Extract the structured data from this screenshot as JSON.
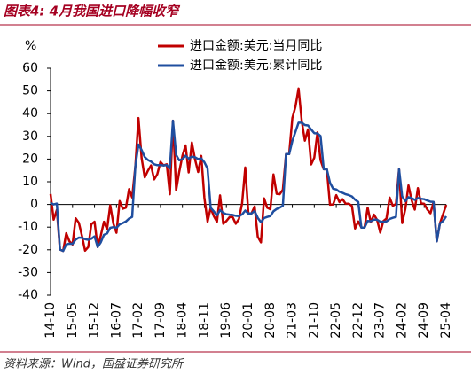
{
  "chart_data": {
    "type": "line",
    "title": "图表4:  4月我国进口降幅收窄",
    "source": "资料来源：Wind，国盛证券研究所",
    "ylabel": "%",
    "categories": [
      "14-10",
      null,
      null,
      null,
      null,
      null,
      null,
      "15-05",
      null,
      null,
      null,
      null,
      null,
      null,
      "15-12",
      null,
      null,
      null,
      null,
      null,
      null,
      "16-07",
      null,
      null,
      null,
      null,
      null,
      null,
      "17-02",
      null,
      null,
      null,
      null,
      null,
      null,
      "17-09",
      null,
      null,
      null,
      null,
      null,
      null,
      "18-04",
      null,
      null,
      null,
      null,
      null,
      null,
      "18-11",
      null,
      null,
      null,
      null,
      null,
      null,
      "19-06",
      null,
      null,
      null,
      null,
      null,
      null,
      "20-01",
      null,
      null,
      null,
      null,
      null,
      null,
      "20-08",
      null,
      null,
      null,
      null,
      null,
      null,
      "21-03",
      null,
      null,
      null,
      null,
      null,
      null,
      "21-10",
      null,
      null,
      null,
      null,
      null,
      null,
      "22-05",
      null,
      null,
      null,
      null,
      null,
      null,
      "22-12",
      null,
      null,
      null,
      null,
      null,
      null,
      "23-07",
      null,
      null,
      null,
      null,
      null,
      null,
      "24-02",
      null,
      null,
      null,
      null,
      null,
      null,
      "24-09",
      null,
      null,
      null,
      null,
      null,
      null,
      "25-04"
    ],
    "series": [
      {
        "name": "进口金额:美元:当月同比",
        "color": "#c00000",
        "values": [
          4.6,
          -6.7,
          -2.4,
          -19.9,
          -20.5,
          -12.7,
          -16.2,
          -17.6,
          -6.1,
          -8.1,
          -13.8,
          -20.4,
          -18.8,
          -8.7,
          -7.6,
          -18.8,
          -13.8,
          -7.6,
          -10.9,
          -0.4,
          -8.4,
          -12.5,
          1.5,
          -1.9,
          -1.4,
          6.7,
          3.1,
          16.7,
          38.1,
          20.3,
          11.9,
          14.8,
          17.2,
          11.0,
          13.3,
          18.7,
          17.2,
          17.7,
          4.5,
          36.9,
          6.3,
          14.4,
          21.5,
          26.0,
          14.1,
          27.3,
          20.0,
          14.3,
          21.4,
          3.0,
          -7.6,
          -1.5,
          -5.2,
          -7.6,
          4.0,
          -8.5,
          -7.3,
          -5.6,
          -5.6,
          -8.5,
          -6.4,
          0.3,
          16.3,
          -4.0,
          -4.0,
          -0.9,
          -14.2,
          -16.7,
          2.7,
          -1.4,
          -2.1,
          13.2,
          4.7,
          4.5,
          6.5,
          22.2,
          22.2,
          38.1,
          43.1,
          51.1,
          36.7,
          28.1,
          33.1,
          17.6,
          20.6,
          31.7,
          19.5,
          15.5,
          15.5,
          -0.1,
          0.0,
          4.1,
          1.0,
          2.3,
          0.3,
          0.3,
          -0.7,
          -10.6,
          -7.5,
          -10.2,
          -10.2,
          -1.4,
          -7.9,
          -4.5,
          -6.8,
          -12.4,
          -7.3,
          -6.2,
          3.0,
          -0.6,
          0.2,
          15.5,
          -8.2,
          -1.9,
          8.4,
          1.8,
          -2.3,
          7.2,
          0.5,
          0.3,
          -2.3,
          -3.9,
          1.0,
          -16.3,
          -8.4,
          -4.3,
          -0.2
        ]
      },
      {
        "name": "进口金额:美元:累计同比",
        "color": "#1f4e9f",
        "values": [
          0.7,
          0.0,
          0.4,
          -19.9,
          -20.5,
          -17.6,
          -17.3,
          -17.4,
          -15.5,
          -14.6,
          -14.7,
          -15.3,
          -15.6,
          -15.1,
          -14.1,
          -18.8,
          -16.7,
          -13.4,
          -12.8,
          -10.3,
          -10.0,
          -10.3,
          -8.8,
          -8.2,
          -7.5,
          -6.2,
          -5.5,
          16.7,
          26.4,
          24.0,
          20.9,
          19.6,
          18.9,
          17.7,
          17.3,
          17.3,
          17.2,
          17.3,
          15.9,
          36.9,
          21.8,
          19.4,
          20.0,
          21.5,
          20.2,
          21.1,
          20.8,
          20.0,
          20.3,
          18.6,
          15.8,
          -1.5,
          -3.1,
          -4.8,
          -2.5,
          -3.7,
          -4.3,
          -4.5,
          -4.6,
          -5.0,
          -5.1,
          -4.4,
          -2.7,
          -4.0,
          -4.0,
          -2.9,
          -5.9,
          -7.8,
          -6.0,
          -5.5,
          -5.1,
          -3.0,
          -2.0,
          -1.4,
          -0.6,
          22.2,
          22.2,
          28.0,
          32.0,
          36.0,
          36.0,
          35.0,
          34.8,
          33.0,
          31.4,
          31.3,
          30.1,
          15.5,
          15.5,
          9.6,
          6.9,
          6.6,
          5.6,
          5.1,
          4.5,
          4.1,
          3.5,
          2.1,
          1.1,
          -10.2,
          -10.2,
          -7.3,
          -7.4,
          -6.7,
          -6.7,
          -7.6,
          -7.6,
          -7.5,
          -6.4,
          -5.9,
          -5.5,
          15.5,
          3.5,
          1.5,
          3.2,
          2.8,
          2.0,
          2.8,
          2.5,
          2.3,
          1.7,
          1.2,
          1.1,
          -16.3,
          -8.4,
          -7.3,
          -5.2
        ]
      }
    ],
    "ylim": [
      -40,
      60
    ],
    "yticks": [
      -40,
      -30,
      -20,
      -10,
      0,
      10,
      20,
      30,
      40,
      50,
      60
    ],
    "grid": false,
    "legend": "top"
  }
}
